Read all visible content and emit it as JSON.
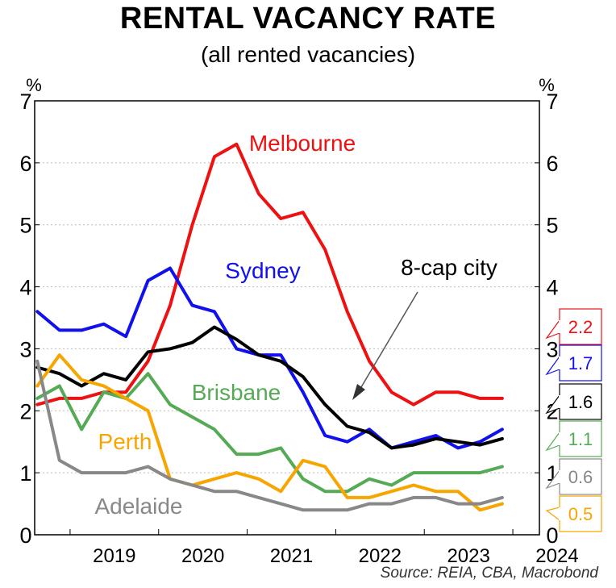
{
  "chart_data": {
    "type": "line",
    "title": "RENTAL VACANCY RATE",
    "subtitle": "(all rented vacancies)",
    "ylabel_left": "%",
    "ylabel_right": "%",
    "ylim": [
      0,
      7
    ],
    "yticks": [
      0,
      1,
      2,
      3,
      4,
      5,
      6,
      7
    ],
    "xlim": [
      2018.6,
      2024.3
    ],
    "xticks": [
      "2019",
      "2020",
      "2021",
      "2022",
      "2023",
      "2024"
    ],
    "grid": "horizontal dotted",
    "source": "Source: REIA, CBA, Macrobond",
    "series": [
      {
        "name": "Melbourne",
        "color": "#ee1111",
        "x": [
          2018.63,
          2018.88,
          2019.13,
          2019.38,
          2019.63,
          2019.88,
          2020.13,
          2020.38,
          2020.63,
          2020.88,
          2021.13,
          2021.38,
          2021.63,
          2021.88,
          2022.13,
          2022.38,
          2022.63,
          2022.88,
          2023.13,
          2023.38,
          2023.63,
          2023.88
        ],
        "y": [
          2.1,
          2.2,
          2.2,
          2.3,
          2.3,
          2.8,
          3.7,
          5.0,
          6.1,
          6.3,
          5.5,
          5.1,
          5.2,
          4.6,
          3.6,
          2.8,
          2.3,
          2.1,
          2.3,
          2.3,
          2.2,
          2.2
        ]
      },
      {
        "name": "Sydney",
        "color": "#1111ee",
        "x": [
          2018.63,
          2018.88,
          2019.13,
          2019.38,
          2019.63,
          2019.88,
          2020.13,
          2020.38,
          2020.63,
          2020.88,
          2021.13,
          2021.38,
          2021.63,
          2021.88,
          2022.13,
          2022.38,
          2022.63,
          2022.88,
          2023.13,
          2023.38,
          2023.63,
          2023.88
        ],
        "y": [
          3.6,
          3.3,
          3.3,
          3.4,
          3.2,
          4.1,
          4.3,
          3.7,
          3.6,
          3.0,
          2.9,
          2.9,
          2.3,
          1.6,
          1.5,
          1.7,
          1.4,
          1.5,
          1.6,
          1.4,
          1.5,
          1.7
        ]
      },
      {
        "name": "8-cap city",
        "color": "#000000",
        "x": [
          2018.63,
          2018.88,
          2019.13,
          2019.38,
          2019.63,
          2019.88,
          2020.13,
          2020.38,
          2020.63,
          2020.88,
          2021.13,
          2021.38,
          2021.63,
          2021.88,
          2022.13,
          2022.38,
          2022.63,
          2022.88,
          2023.13,
          2023.38,
          2023.63,
          2023.88
        ],
        "y": [
          2.7,
          2.6,
          2.4,
          2.6,
          2.5,
          2.95,
          3.0,
          3.1,
          3.35,
          3.15,
          2.9,
          2.8,
          2.55,
          2.1,
          1.75,
          1.65,
          1.4,
          1.45,
          1.55,
          1.5,
          1.45,
          1.55
        ]
      },
      {
        "name": "Brisbane",
        "color": "#55aa55",
        "x": [
          2018.63,
          2018.88,
          2019.13,
          2019.38,
          2019.63,
          2019.88,
          2020.13,
          2020.38,
          2020.63,
          2020.88,
          2021.13,
          2021.38,
          2021.63,
          2021.88,
          2022.13,
          2022.38,
          2022.63,
          2022.88,
          2023.13,
          2023.38,
          2023.63,
          2023.88
        ],
        "y": [
          2.2,
          2.4,
          1.7,
          2.3,
          2.2,
          2.6,
          2.1,
          1.9,
          1.7,
          1.3,
          1.3,
          1.4,
          0.9,
          0.7,
          0.7,
          0.9,
          0.8,
          1.0,
          1.0,
          1.0,
          1.0,
          1.1
        ]
      },
      {
        "name": "Perth",
        "color": "#f7a500",
        "x": [
          2018.63,
          2018.88,
          2019.13,
          2019.38,
          2019.63,
          2019.88,
          2020.13,
          2020.38,
          2020.63,
          2020.88,
          2021.13,
          2021.38,
          2021.63,
          2021.88,
          2022.13,
          2022.38,
          2022.63,
          2022.88,
          2023.13,
          2023.38,
          2023.63,
          2023.88
        ],
        "y": [
          2.4,
          2.9,
          2.5,
          2.4,
          2.2,
          2.0,
          0.9,
          0.8,
          0.9,
          1.0,
          0.9,
          0.7,
          1.2,
          1.1,
          0.6,
          0.6,
          0.7,
          0.8,
          0.7,
          0.7,
          0.4,
          0.5
        ]
      },
      {
        "name": "Adelaide",
        "color": "#888888",
        "x": [
          2018.63,
          2018.88,
          2019.13,
          2019.38,
          2019.63,
          2019.88,
          2020.13,
          2020.38,
          2020.63,
          2020.88,
          2021.13,
          2021.38,
          2021.63,
          2021.88,
          2022.13,
          2022.38,
          2022.63,
          2022.88,
          2023.13,
          2023.38,
          2023.63,
          2023.88
        ],
        "y": [
          2.8,
          1.2,
          1.0,
          1.0,
          1.0,
          1.1,
          0.9,
          0.8,
          0.7,
          0.7,
          0.6,
          0.5,
          0.4,
          0.4,
          0.4,
          0.5,
          0.5,
          0.6,
          0.6,
          0.5,
          0.5,
          0.6
        ]
      }
    ],
    "end_labels": [
      {
        "text": "2.2",
        "color": "#ee1111"
      },
      {
        "text": "1.7",
        "color": "#1111ee"
      },
      {
        "text": "1.6",
        "color": "#000000"
      },
      {
        "text": "1.1",
        "color": "#55aa55"
      },
      {
        "text": "0.6",
        "color": "#888888"
      },
      {
        "text": "0.5",
        "color": "#f7a500"
      }
    ]
  }
}
